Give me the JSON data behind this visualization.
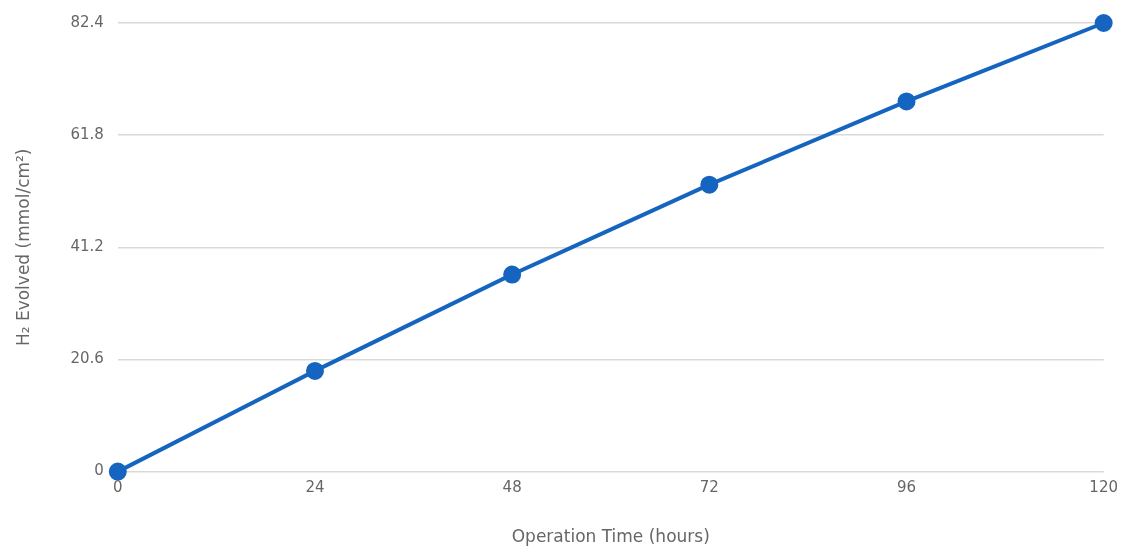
{
  "chart_data": {
    "type": "line",
    "xlabel": "Operation Time (hours)",
    "ylabel": "H₂ Evolved (mmol/cm²)",
    "x": [
      0,
      24,
      48,
      72,
      96,
      120
    ],
    "series": [
      {
        "color": "#1565c0",
        "values": [
          0,
          18.5,
          36.2,
          52.7,
          68.0,
          82.4
        ]
      }
    ],
    "xlim": [
      0,
      120
    ],
    "xticks": [
      0,
      24,
      48,
      72,
      96,
      120
    ],
    "ylim": [
      0,
      82.4
    ],
    "yticks": [
      0,
      20.6,
      41.2,
      61.8,
      82.4
    ],
    "grid": "y",
    "legend": false,
    "marker": "circle",
    "line_style": "solid"
  }
}
